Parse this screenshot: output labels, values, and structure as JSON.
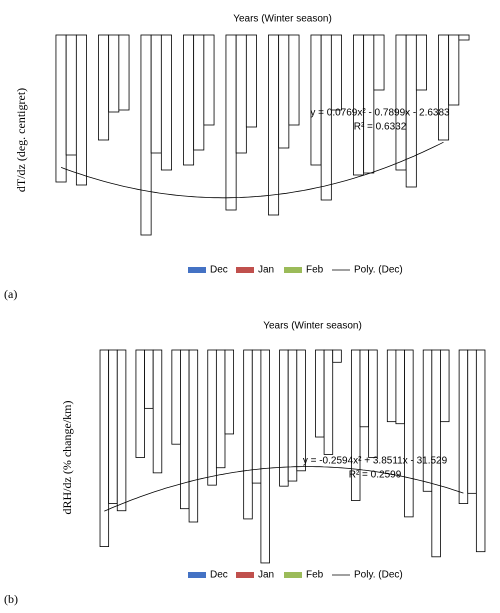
{
  "chart_data": [
    {
      "type": "bar",
      "label": "(a)",
      "title": "Years (Winter season)",
      "ylabel": "dT/dz (deg. centigret)",
      "categories": [
        null,
        null,
        null,
        null,
        null,
        null,
        null,
        null,
        null,
        null
      ],
      "bar_fill": "#ffffff",
      "series": [
        {
          "name": "Dec",
          "color": "#4472c4",
          "values": [
            -14.7,
            -10.5,
            -20.0,
            -13.0,
            -17.5,
            -18.0,
            -13.0,
            -14.0,
            -13.5,
            -10.5
          ]
        },
        {
          "name": "Jan",
          "color": "#c0504d",
          "values": [
            -12.0,
            -7.7,
            -11.8,
            -11.5,
            -11.8,
            -11.3,
            -16.5,
            -13.8,
            -15.2,
            -7.0
          ]
        },
        {
          "name": "Feb",
          "color": "#9bbb59",
          "values": [
            -15.0,
            -7.5,
            -13.5,
            -9.0,
            -9.2,
            -9.0,
            -7.5,
            -5.5,
            -5.5,
            -0.5
          ]
        }
      ],
      "trendline": {
        "name": "Poly. (Dec)",
        "equation": "y = 0.0769x² - 0.7899x - 2.6383",
        "r2": "R² = 0.6332"
      },
      "ylim": [
        -21,
        0
      ]
    },
    {
      "type": "bar",
      "label": "(b)",
      "title": "Years (Winter season)",
      "ylabel": "dRH/dz (% change/km)",
      "categories": [
        null,
        null,
        null,
        null,
        null,
        null,
        null,
        null,
        null,
        null,
        null
      ],
      "bar_fill": "#ffffff",
      "series": [
        {
          "name": "Dec",
          "color": "#4472c4",
          "values": [
            -19.2,
            -10.5,
            -9.2,
            -13.2,
            -16.5,
            -13.3,
            -8.5,
            -14.7,
            -7.0,
            -13.8,
            -15.0
          ]
        },
        {
          "name": "Jan",
          "color": "#c0504d",
          "values": [
            -15.0,
            -5.7,
            -15.5,
            -11.5,
            -13.0,
            -12.8,
            -10.2,
            -7.5,
            -7.2,
            -20.2,
            -14.0
          ]
        },
        {
          "name": "Feb",
          "color": "#9bbb59",
          "values": [
            -15.7,
            -12.0,
            -16.8,
            -8.2,
            -20.8,
            -11.8,
            -1.2,
            -10.5,
            -16.3,
            -7.0,
            -19.7
          ]
        }
      ],
      "trendline": {
        "name": "Poly. (Dec)",
        "equation": "y = -0.2594x² + 3.8511x - 31.529",
        "r2": "R² = 0.2599"
      },
      "ylim": [
        -21,
        0
      ]
    }
  ]
}
